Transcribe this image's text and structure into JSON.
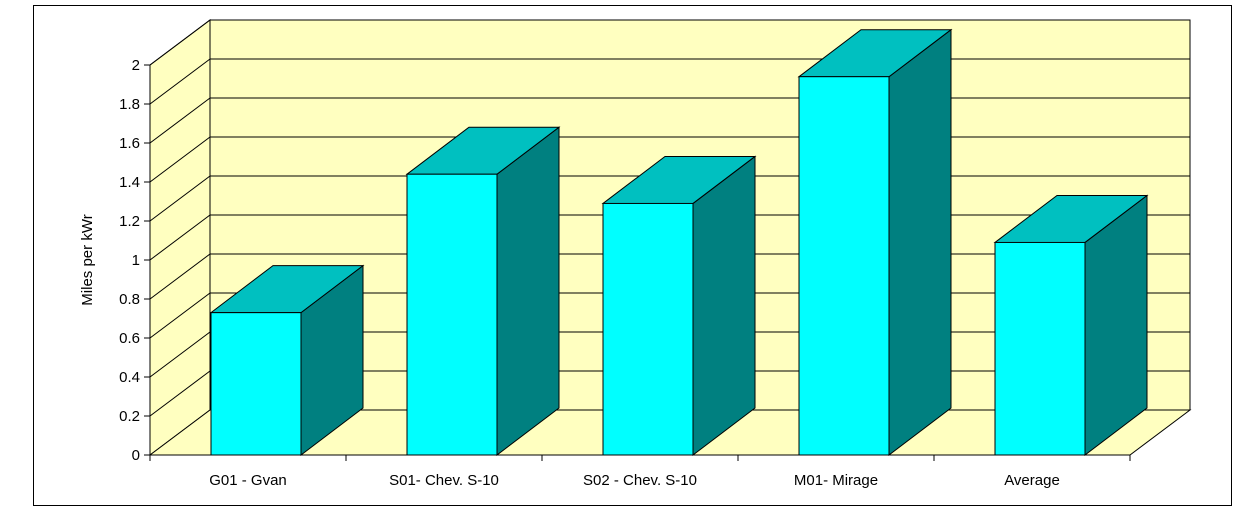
{
  "chart_data": {
    "type": "bar",
    "title": "",
    "xlabel": "",
    "ylabel": "Miles per kWr",
    "categories": [
      "G01 - Gvan",
      "S01- Chev. S-10",
      "S02 - Chev. S-10",
      "M01- Mirage",
      "Average"
    ],
    "values": [
      0.73,
      1.44,
      1.29,
      1.94,
      1.09
    ],
    "ylim": [
      0,
      2
    ],
    "yticks": [
      "0",
      "0.2",
      "0.4",
      "0.6",
      "0.8",
      "1",
      "1.2",
      "1.4",
      "1.6",
      "1.8",
      "2"
    ],
    "grid": true,
    "legend": "none",
    "style": "3d-column"
  },
  "colors": {
    "wall": "#FFFFC0",
    "bar_front": "#00FFFF",
    "bar_top": "#00C0C0",
    "bar_side": "#008080",
    "grid": "#000000"
  }
}
